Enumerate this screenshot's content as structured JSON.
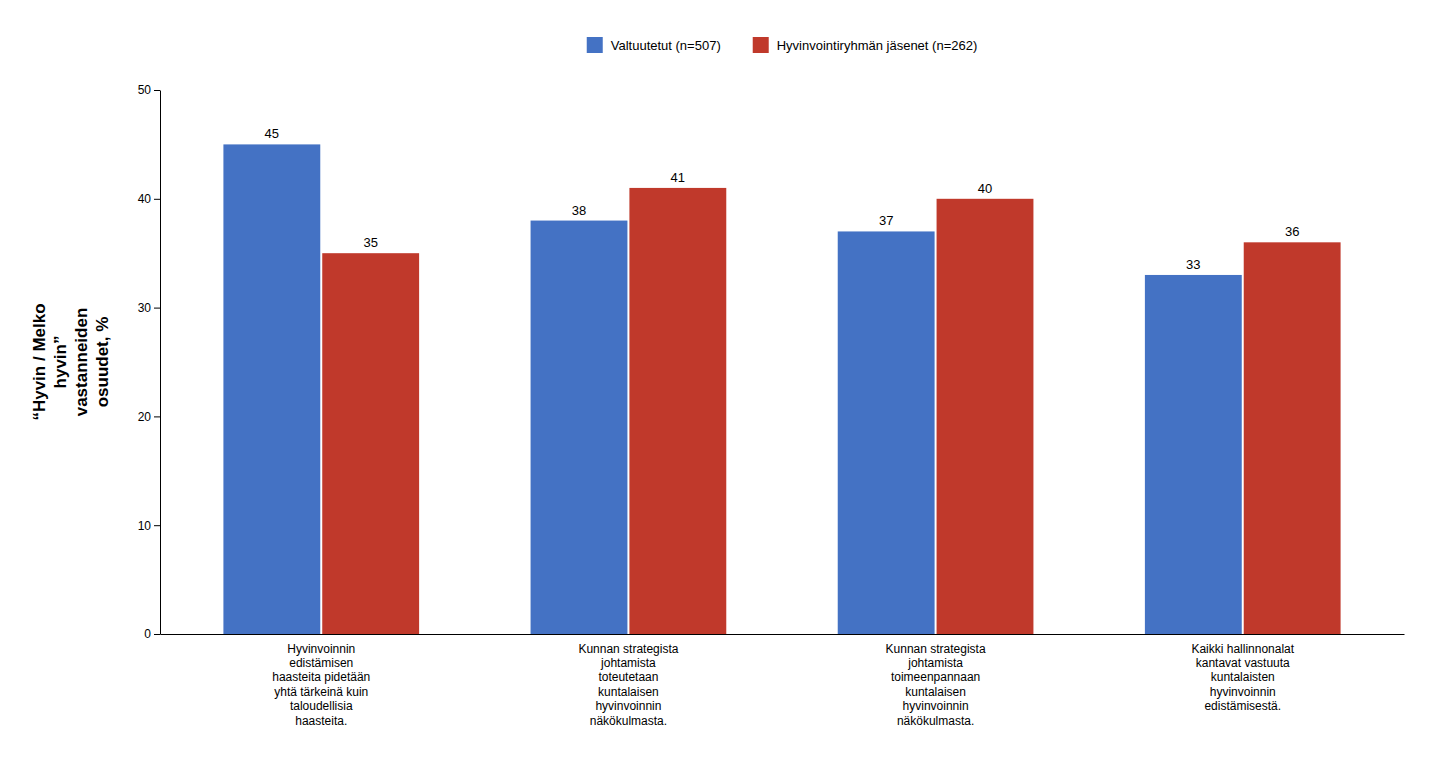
{
  "chart_data": {
    "type": "bar",
    "categories": [
      "Hyvinvoinnin\nedistämisen\nhaasteita pidetään\nyhtä tärkeinä kuin\ntaloudellisia\nhaasteita.",
      "Kunnan strategista\njohtamista\ntoteutetaan\nkuntalaisen\nhyvinvoinnin\nnäkökulmasta.",
      "Kunnan strategista\njohtamista\ntoimeenpannaan\nkuntalaisen\nhyvinvoinnin\nnäkökulmasta.",
      "Kaikki hallinnonalat\nkantavat vastuuta\nkuntalaisten\nhyvinvoinnin\nedistämisestä."
    ],
    "series": [
      {
        "name": "Valtuutetut (n=507)",
        "color": "#4472C4",
        "values": [
          45,
          38,
          37,
          33
        ]
      },
      {
        "name": "Hyvinvointiryhmän jäsenet (n=262)",
        "color": "#C0392B",
        "values": [
          35,
          41,
          40,
          36
        ]
      }
    ],
    "ylabel": "“Hyvin / Melko\nhyvin”\nvastanneiden\nosuudet, %",
    "ylim": [
      0,
      50
    ],
    "yticks": [
      0,
      10,
      20,
      30,
      40,
      50
    ],
    "grid": false,
    "legend": "top",
    "data_labels": true
  }
}
